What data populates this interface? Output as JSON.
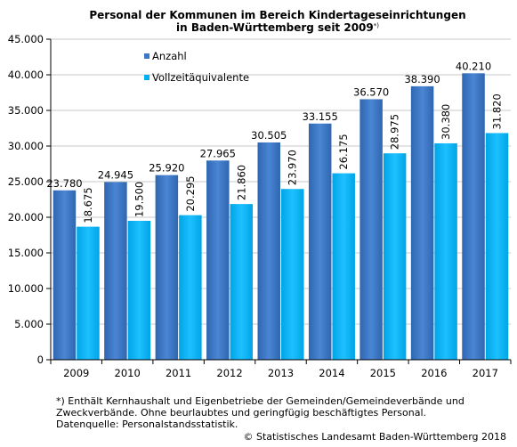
{
  "chart_data": {
    "type": "bar",
    "title": "Personal der Kommunen im Bereich Kindertageseinrichtungen",
    "subtitle": "in Baden-Württemberg seit 2009",
    "subtitle_sup": "*)",
    "categories": [
      "2009",
      "2010",
      "2011",
      "2012",
      "2013",
      "2014",
      "2015",
      "2016",
      "2017"
    ],
    "series": [
      {
        "name": "Anzahl",
        "color": "#3a77c4",
        "values": [
          23780,
          24945,
          25920,
          27965,
          30505,
          33155,
          36570,
          38390,
          40210
        ],
        "labels": [
          "23.780",
          "24.945",
          "25.920",
          "27.965",
          "30.505",
          "33.155",
          "36.570",
          "38.390",
          "40.210"
        ]
      },
      {
        "name": "Vollzeitäquivalente",
        "color": "#00b0f0",
        "values": [
          18675,
          19500,
          20295,
          21860,
          23970,
          26175,
          28975,
          30380,
          31820
        ],
        "labels": [
          "18.675",
          "19.500",
          "20.295",
          "21.860",
          "23.970",
          "26.175",
          "28.975",
          "30.380",
          "31.820"
        ]
      }
    ],
    "ylim": [
      0,
      45000
    ],
    "yticks": [
      0,
      5000,
      10000,
      15000,
      20000,
      25000,
      30000,
      35000,
      40000,
      45000
    ],
    "ytick_labels": [
      "0",
      "5.000",
      "10.000",
      "15.000",
      "20.000",
      "25.000",
      "30.000",
      "35.000",
      "40.000",
      "45.000"
    ],
    "grid": true,
    "legend_position": "top-left"
  },
  "footnote": {
    "line1": "*) Enthält Kernhaushalt und Eigenbetriebe der Gemeinden/Gemeindeverbände und",
    "line2": "Zweckverbände. Ohne beurlaubtes  und geringfügig beschäftigtes Personal.",
    "line3": "Datenquelle: Personalstandsstatistik."
  },
  "copyright": "© Statistisches Landesamt Baden-Württemberg 2018"
}
